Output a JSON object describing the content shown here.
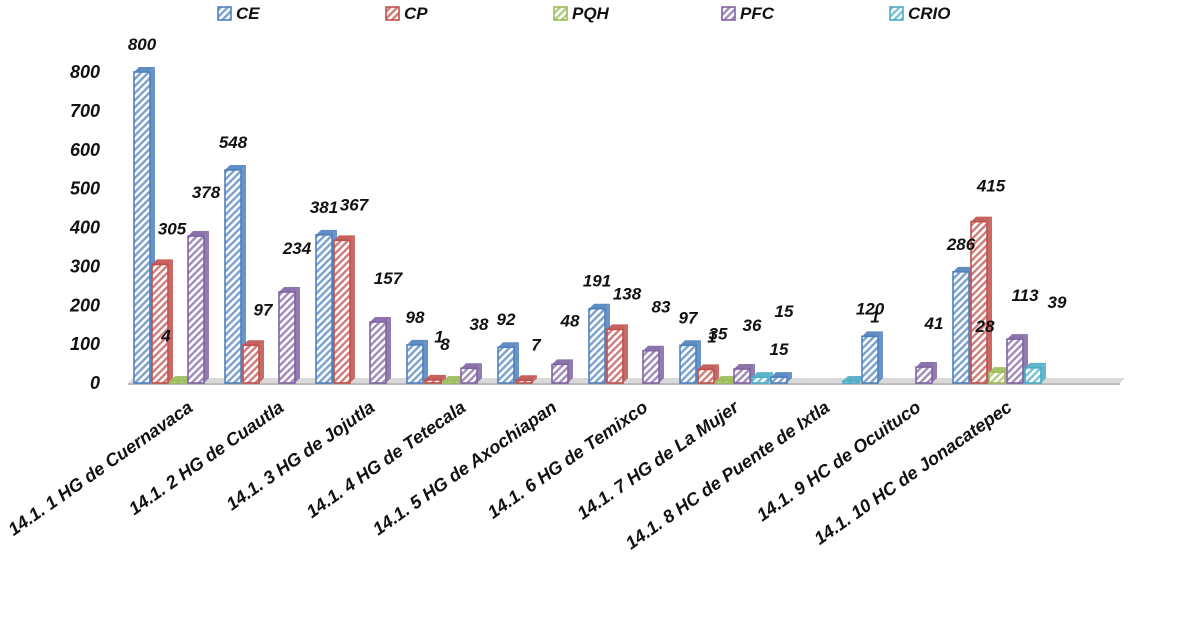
{
  "chart_data": {
    "type": "bar",
    "title": "",
    "xlabel": "",
    "ylabel": "",
    "ylim": [
      0,
      800
    ],
    "yticks": [
      0,
      100,
      200,
      300,
      400,
      500,
      600,
      700,
      800
    ],
    "legend_position": "top",
    "style": "3d-clustered-column",
    "categories": [
      "14.1. 1 HG de Cuernavaca",
      "14.1. 2 HG de Cuautla",
      "14.1. 3 HG de Jojutla",
      "14.1. 4 HG de Tetecala",
      "14.1. 5 HG de Axochiapan",
      "14.1. 6 HG de Temixco",
      "14.1. 7 HG de La Mujer",
      "14.1. 8 HC de Puente de Ixtla",
      "14.1. 9 HC de Ocuituco",
      "14.1. 10 HC de Jonacatepec"
    ],
    "series": [
      {
        "name": "CE",
        "color": "#4f81bd",
        "values": [
          800,
          548,
          381,
          98,
          92,
          191,
          97,
          15,
          120,
          286
        ]
      },
      {
        "name": "CP",
        "color": "#c0504d",
        "values": [
          305,
          97,
          367,
          8,
          7,
          138,
          35,
          0,
          0,
          415
        ]
      },
      {
        "name": "PQH",
        "color": "#9bbb59",
        "values": [
          4,
          0,
          0,
          1,
          0,
          0,
          1,
          0,
          0,
          28
        ]
      },
      {
        "name": "PFC",
        "color": "#8064a2",
        "values": [
          378,
          234,
          157,
          38,
          48,
          83,
          36,
          0,
          41,
          113
        ]
      },
      {
        "name": "CRIO",
        "color": "#4bacc6",
        "values": [
          0,
          0,
          0,
          0,
          0,
          0,
          15,
          1,
          0,
          39
        ]
      }
    ]
  }
}
